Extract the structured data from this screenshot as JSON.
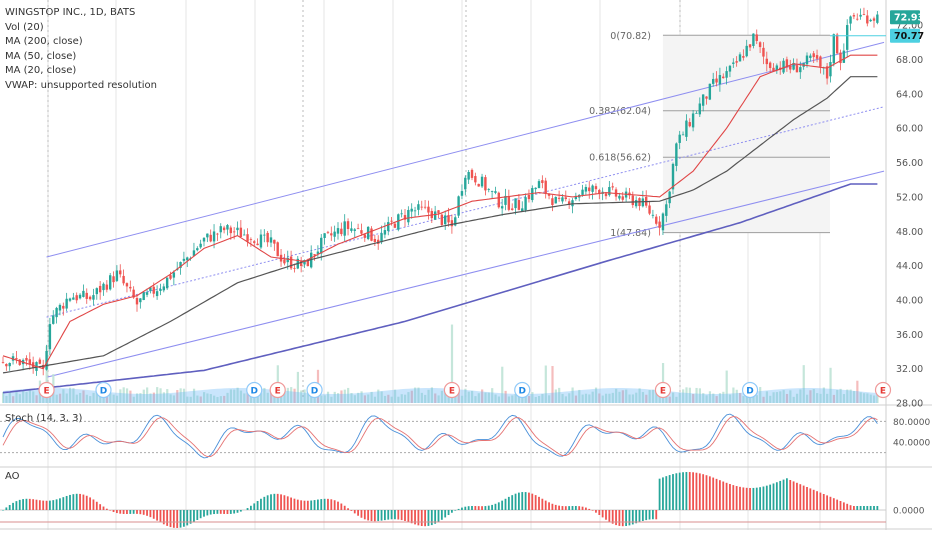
{
  "legend": {
    "title": "WINGSTOP INC., 1D, BATS",
    "items": [
      "Vol (20)",
      "MA (200, close)",
      "MA (50, close)",
      "MA (20, close)",
      "VWAP: unsupported resolution"
    ]
  },
  "stoch_label": "Stoch (14, 3, 3)",
  "ao_label": "AO",
  "colors": {
    "up": "#26a69a",
    "down": "#ef5350",
    "channel": "#8e8ef0",
    "ma200": "#5f5fbf",
    "ma50": "#555555",
    "ma20": "#e04646",
    "fib": "#9e9e9e",
    "last_badge": "#26a69a",
    "fib_badge": "#4dd0e1",
    "volume": "#64b5f6"
  },
  "chart_data": [
    {
      "type": "candlestick",
      "title": "WINGSTOP INC., 1D, BATS",
      "ylim": [
        28,
        74
      ],
      "y_ticks": [
        "72.00",
        "68.00",
        "64.00",
        "60.00",
        "56.00",
        "52.00",
        "48.00",
        "44.00",
        "40.00",
        "36.00",
        "32.00",
        "28.00"
      ],
      "last_price": "72.93",
      "last_price_value": 72.93,
      "fib_badge": "70.77",
      "fib_badge_value": 70.77,
      "fib_levels": [
        {
          "label": "0(70.82)",
          "value": 70.82
        },
        {
          "label": "0.382(62.04)",
          "value": 62.04
        },
        {
          "label": "0.618(56.62)",
          "value": 56.62
        },
        {
          "label": "1(47.84)",
          "value": 47.84
        }
      ],
      "events": [
        {
          "label": "E",
          "bar": 13
        },
        {
          "label": "D",
          "bar": 30
        },
        {
          "label": "D",
          "bar": 75
        },
        {
          "label": "E",
          "bar": 82
        },
        {
          "label": "D",
          "bar": 93
        },
        {
          "label": "E",
          "bar": 134
        },
        {
          "label": "D",
          "bar": 155
        },
        {
          "label": "E",
          "bar": 197
        },
        {
          "label": "D",
          "bar": 223
        },
        {
          "label": "E",
          "bar": 263
        }
      ],
      "price_anchors": [
        [
          0,
          33.0
        ],
        [
          6,
          32.8
        ],
        [
          12,
          31.6
        ],
        [
          14,
          37.8
        ],
        [
          20,
          40.5
        ],
        [
          26,
          40.2
        ],
        [
          34,
          43.0
        ],
        [
          40,
          39.5
        ],
        [
          48,
          42.0
        ],
        [
          54,
          44.5
        ],
        [
          60,
          47.0
        ],
        [
          66,
          48.2
        ],
        [
          74,
          47.5
        ],
        [
          80,
          46.5
        ],
        [
          84,
          44.5
        ],
        [
          90,
          44.0
        ],
        [
          96,
          47.0
        ],
        [
          102,
          48.5
        ],
        [
          108,
          48.0
        ],
        [
          112,
          47.0
        ],
        [
          116,
          48.8
        ],
        [
          122,
          50.5
        ],
        [
          128,
          50.2
        ],
        [
          134,
          48.5
        ],
        [
          138,
          55.0
        ],
        [
          142,
          54.0
        ],
        [
          148,
          51.5
        ],
        [
          154,
          51.0
        ],
        [
          160,
          53.5
        ],
        [
          166,
          51.0
        ],
        [
          172,
          52.5
        ],
        [
          178,
          53.0
        ],
        [
          184,
          52.0
        ],
        [
          190,
          51.5
        ],
        [
          196,
          49.0
        ],
        [
          198,
          51.0
        ],
        [
          201,
          58.0
        ],
        [
          206,
          61.5
        ],
        [
          212,
          65.0
        ],
        [
          218,
          67.0
        ],
        [
          224,
          70.5
        ],
        [
          228,
          67.5
        ],
        [
          236,
          67.0
        ],
        [
          242,
          68.0
        ],
        [
          246,
          66.0
        ],
        [
          248,
          70.5
        ],
        [
          250,
          68.0
        ],
        [
          253,
          73.0
        ]
      ],
      "ma20_anchors": [
        [
          0,
          33.5
        ],
        [
          12,
          32.0
        ],
        [
          20,
          37.5
        ],
        [
          30,
          39.5
        ],
        [
          40,
          40.5
        ],
        [
          50,
          43.0
        ],
        [
          60,
          46.0
        ],
        [
          70,
          47.5
        ],
        [
          80,
          45.0
        ],
        [
          90,
          44.5
        ],
        [
          100,
          46.5
        ],
        [
          110,
          48.0
        ],
        [
          120,
          49.5
        ],
        [
          130,
          50.0
        ],
        [
          140,
          51.5
        ],
        [
          150,
          52.0
        ],
        [
          160,
          52.5
        ],
        [
          170,
          52.0
        ],
        [
          180,
          52.5
        ],
        [
          196,
          52.0
        ],
        [
          206,
          55.0
        ],
        [
          216,
          60.0
        ],
        [
          226,
          66.0
        ],
        [
          236,
          67.5
        ],
        [
          246,
          67.0
        ],
        [
          253,
          68.5
        ]
      ],
      "ma50_anchors": [
        [
          0,
          31.5
        ],
        [
          30,
          33.5
        ],
        [
          50,
          37.5
        ],
        [
          70,
          42.0
        ],
        [
          90,
          44.5
        ],
        [
          110,
          46.5
        ],
        [
          130,
          48.5
        ],
        [
          150,
          50.0
        ],
        [
          170,
          51.2
        ],
        [
          196,
          51.5
        ],
        [
          206,
          52.8
        ],
        [
          216,
          55.0
        ],
        [
          226,
          58.0
        ],
        [
          236,
          61.0
        ],
        [
          246,
          63.5
        ],
        [
          253,
          66.0
        ]
      ],
      "ma200_anchors": [
        [
          0,
          29.2
        ],
        [
          60,
          31.8
        ],
        [
          120,
          37.5
        ],
        [
          180,
          44.5
        ],
        [
          220,
          49.0
        ],
        [
          253,
          53.5
        ]
      ],
      "channel_lines": [
        {
          "from": [
            13,
            45.0
          ],
          "to": [
            263,
            70.0
          ]
        },
        {
          "from": [
            13,
            31.0
          ],
          "to": [
            263,
            55.0
          ]
        },
        {
          "from": [
            13,
            38.0
          ],
          "to": [
            263,
            62.5
          ]
        }
      ],
      "channel_style": [
        "solid",
        "solid",
        "dotted"
      ]
    },
    {
      "type": "line",
      "title": "Stoch (14, 3, 3)",
      "ylim": [
        0,
        100
      ],
      "y_ticks": [
        "80.0000",
        "40.0000"
      ],
      "y_tick_values": [
        80,
        40
      ],
      "bands": [
        80,
        20
      ]
    },
    {
      "type": "bar",
      "title": "AO",
      "y_ticks": [
        "0.0000"
      ],
      "y_tick_values": [
        0
      ]
    }
  ]
}
